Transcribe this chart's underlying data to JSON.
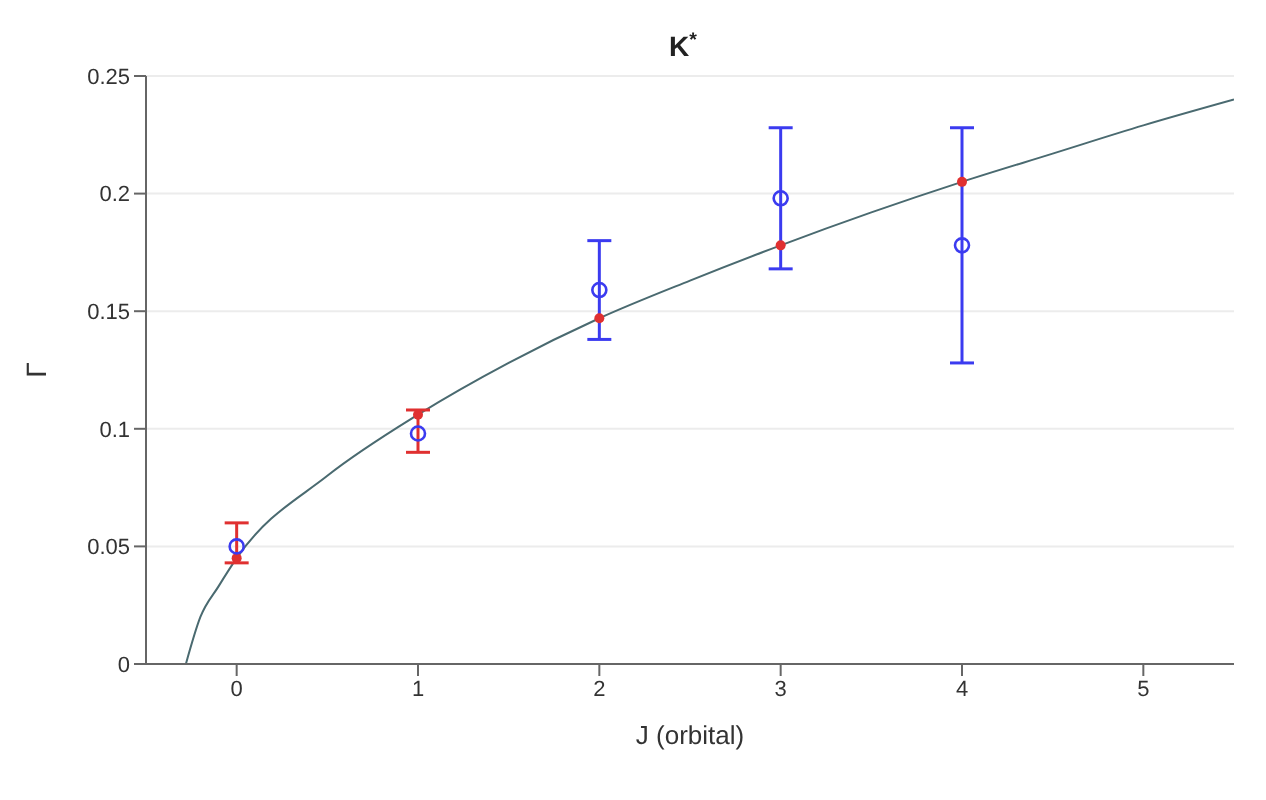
{
  "chart_data": {
    "type": "scatter",
    "title": "K$^{*}$",
    "xlabel": "J (orbital)",
    "ylabel": "Γ",
    "xlim": [
      -0.5,
      5.5
    ],
    "xticks": [
      0,
      1,
      2,
      3,
      4,
      5
    ],
    "ylim": [
      0,
      0.25
    ],
    "yticks": [
      0,
      0.05,
      0.1,
      0.15,
      0.2,
      0.25
    ],
    "grid": "y",
    "series": [
      {
        "type": "line",
        "color": "#4a6a70",
        "x": [
          -0.28,
          -0.2,
          -0.1,
          0,
          0.5,
          1,
          1.5,
          2,
          2.5,
          3,
          3.5,
          4,
          4.5,
          5,
          5.5
        ],
        "values": [
          0,
          0.02,
          0.033,
          0.045,
          0.08,
          0.106,
          0.128,
          0.147,
          0.163,
          0.178,
          0.192,
          0.205,
          0.217,
          0.229,
          0.24
        ],
        "marker": "none"
      },
      {
        "color": "#e03030",
        "x": [
          0,
          1,
          2,
          3,
          4
        ],
        "values": [
          0.045,
          0.106,
          0.147,
          0.178,
          0.205
        ],
        "errors": [
          [
            0.043,
            0.06
          ],
          [
            0.09,
            0.108
          ],
          null,
          null,
          null
        ],
        "marker": "circle"
      },
      {
        "color": "#3b3bf0",
        "x": [
          0,
          1,
          2,
          3,
          4
        ],
        "values": [
          0.05,
          0.098,
          0.159,
          0.198,
          0.178
        ],
        "errors": [
          null,
          null,
          [
            0.138,
            0.18
          ],
          [
            0.168,
            0.228
          ],
          [
            0.128,
            0.228
          ]
        ],
        "marker": "circle"
      }
    ]
  }
}
